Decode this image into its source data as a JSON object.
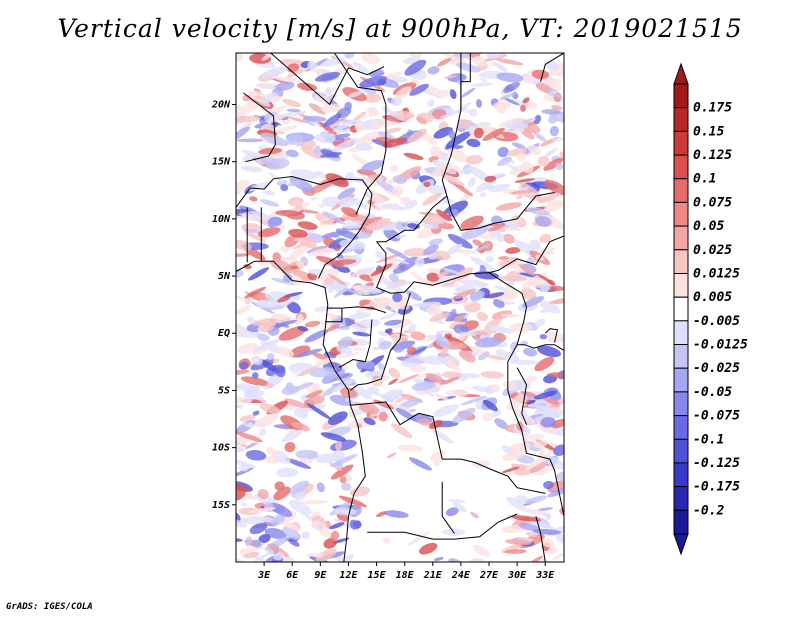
{
  "title": "Vertical velocity [m/s] at 900hPa, VT: 2019021515",
  "footer": "GrADS: IGES/COLA",
  "map": {
    "lon_range": [
      0,
      35
    ],
    "lat_range": [
      -20,
      24.5
    ],
    "lat_ticks": [
      "20N",
      "15N",
      "10N",
      "5N",
      "EQ",
      "5S",
      "10S",
      "15S"
    ],
    "lat_values": [
      20,
      15,
      10,
      5,
      0,
      -5,
      -10,
      -15
    ],
    "lon_ticks": [
      "3E",
      "6E",
      "9E",
      "12E",
      "15E",
      "18E",
      "21E",
      "24E",
      "27E",
      "30E",
      "33E"
    ],
    "lon_values": [
      3,
      6,
      9,
      12,
      15,
      18,
      21,
      24,
      27,
      30,
      33
    ]
  },
  "colorbar": {
    "labels": [
      "0.175",
      "0.15",
      "0.125",
      "0.1",
      "0.075",
      "0.05",
      "0.025",
      "0.0125",
      "0.005",
      "-0.005",
      "-0.0125",
      "-0.025",
      "-0.05",
      "-0.075",
      "-0.1",
      "-0.125",
      "-0.175",
      "-0.2"
    ],
    "colors": [
      "#a01a1a",
      "#b82828",
      "#cc3a3a",
      "#dc5050",
      "#e66a6a",
      "#ee8888",
      "#f4a6a6",
      "#f8c4c4",
      "#fce2e2",
      "#ffffff",
      "#e0e0fc",
      "#c4c4f8",
      "#a6a6f2",
      "#8888ec",
      "#6a6ae4",
      "#5050d8",
      "#3a3ac8",
      "#2828b0",
      "#1a1a98"
    ],
    "top_color": "#a01a1a",
    "bottom_color": "#1a1a98"
  }
}
